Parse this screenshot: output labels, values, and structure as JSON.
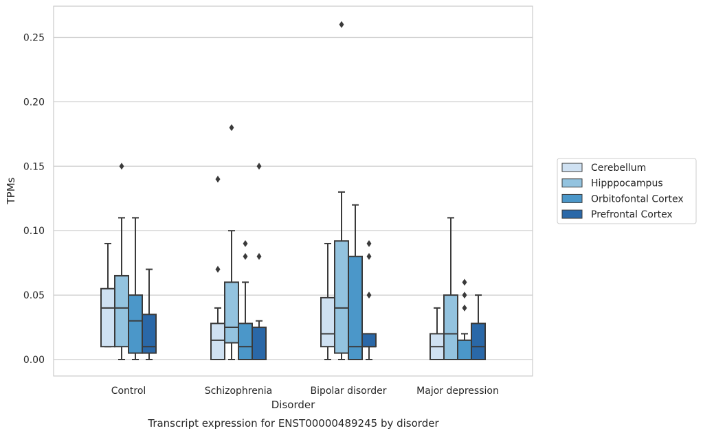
{
  "chart_data": {
    "type": "box",
    "xlabel": "Disorder",
    "ylabel": "TPMs",
    "caption": "Transcript expression for ENST00000489245 by disorder",
    "ylim": [
      -0.013,
      0.274
    ],
    "yticks": [
      "0.00",
      "0.05",
      "0.10",
      "0.15",
      "0.20",
      "0.25"
    ],
    "categories": [
      "Control",
      "Schizophrenia",
      "Bipolar disorder",
      "Major depression"
    ],
    "grid": "horizontal",
    "legend_position": "right",
    "series": [
      {
        "name": "Cerebellum",
        "color": "#cfe1f2",
        "boxes": [
          {
            "low": 0.01,
            "q1": 0.01,
            "median": 0.04,
            "q3": 0.055,
            "high": 0.09,
            "outliers": []
          },
          {
            "low": 0.0,
            "q1": 0.0,
            "median": 0.015,
            "q3": 0.028,
            "high": 0.04,
            "outliers": [
              0.07,
              0.14
            ]
          },
          {
            "low": 0.0,
            "q1": 0.01,
            "median": 0.02,
            "q3": 0.048,
            "high": 0.09,
            "outliers": []
          },
          {
            "low": 0.0,
            "q1": 0.0,
            "median": 0.01,
            "q3": 0.02,
            "high": 0.04,
            "outliers": []
          }
        ]
      },
      {
        "name": "Hipppocampus",
        "color": "#93c3df",
        "boxes": [
          {
            "low": 0.0,
            "q1": 0.01,
            "median": 0.04,
            "q3": 0.065,
            "high": 0.11,
            "outliers": [
              0.15
            ]
          },
          {
            "low": 0.0,
            "q1": 0.013,
            "median": 0.025,
            "q3": 0.06,
            "high": 0.1,
            "outliers": [
              0.18
            ]
          },
          {
            "low": 0.0,
            "q1": 0.005,
            "median": 0.04,
            "q3": 0.092,
            "high": 0.13,
            "outliers": [
              0.26
            ]
          },
          {
            "low": 0.0,
            "q1": 0.0,
            "median": 0.02,
            "q3": 0.05,
            "high": 0.11,
            "outliers": []
          }
        ]
      },
      {
        "name": "Orbitofontal Cortex",
        "color": "#4b97c9",
        "boxes": [
          {
            "low": 0.0,
            "q1": 0.005,
            "median": 0.03,
            "q3": 0.05,
            "high": 0.11,
            "outliers": []
          },
          {
            "low": 0.0,
            "q1": 0.0,
            "median": 0.01,
            "q3": 0.028,
            "high": 0.06,
            "outliers": [
              0.08,
              0.09
            ]
          },
          {
            "low": 0.0,
            "q1": 0.0,
            "median": 0.01,
            "q3": 0.08,
            "high": 0.12,
            "outliers": []
          },
          {
            "low": 0.0,
            "q1": 0.0,
            "median": 0.0,
            "q3": 0.015,
            "high": 0.02,
            "outliers": [
              0.04,
              0.05,
              0.06
            ]
          }
        ]
      },
      {
        "name": "Prefrontal Cortex",
        "color": "#2a68a8",
        "boxes": [
          {
            "low": 0.0,
            "q1": 0.005,
            "median": 0.01,
            "q3": 0.035,
            "high": 0.07,
            "outliers": []
          },
          {
            "low": 0.0,
            "q1": 0.0,
            "median": 0.0,
            "q3": 0.025,
            "high": 0.03,
            "outliers": [
              0.08,
              0.15
            ]
          },
          {
            "low": 0.0,
            "q1": 0.01,
            "median": 0.01,
            "q3": 0.02,
            "high": 0.02,
            "outliers": [
              0.05,
              0.08,
              0.09
            ]
          },
          {
            "low": 0.0,
            "q1": 0.0,
            "median": 0.01,
            "q3": 0.028,
            "high": 0.05,
            "outliers": []
          }
        ]
      }
    ]
  }
}
